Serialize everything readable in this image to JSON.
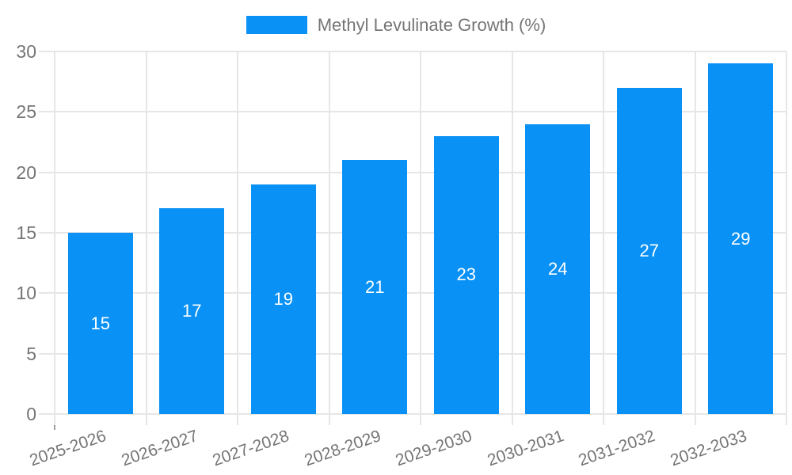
{
  "legend": {
    "label": "Methyl Levulinate Growth (%)"
  },
  "chart_data": {
    "type": "bar",
    "title": "Methyl Levulinate Growth (%)",
    "categories": [
      "2025-2026",
      "2026-2027",
      "2027-2028",
      "2028-2029",
      "2029-2030",
      "2030-2031",
      "2031-2032",
      "2032-2033"
    ],
    "values": [
      15,
      17,
      19,
      21,
      23,
      24,
      27,
      29
    ],
    "series": [
      {
        "name": "Methyl Levulinate Growth (%)",
        "values": [
          15,
          17,
          19,
          21,
          23,
          24,
          27,
          29
        ]
      }
    ],
    "xlabel": "",
    "ylabel": "",
    "ylim": [
      0,
      30
    ],
    "yticks": [
      0,
      5,
      10,
      15,
      20,
      25,
      30
    ],
    "grid": true,
    "legend_position": "top-center",
    "value_labels_position": "inside-center",
    "x_tick_rotation_deg": -19,
    "colors": {
      "bar": "#0991f5",
      "grid": "#e6e6e6",
      "axis_line": "#9e9e9e",
      "text": "#757575",
      "value_label": "#ffffff"
    }
  }
}
